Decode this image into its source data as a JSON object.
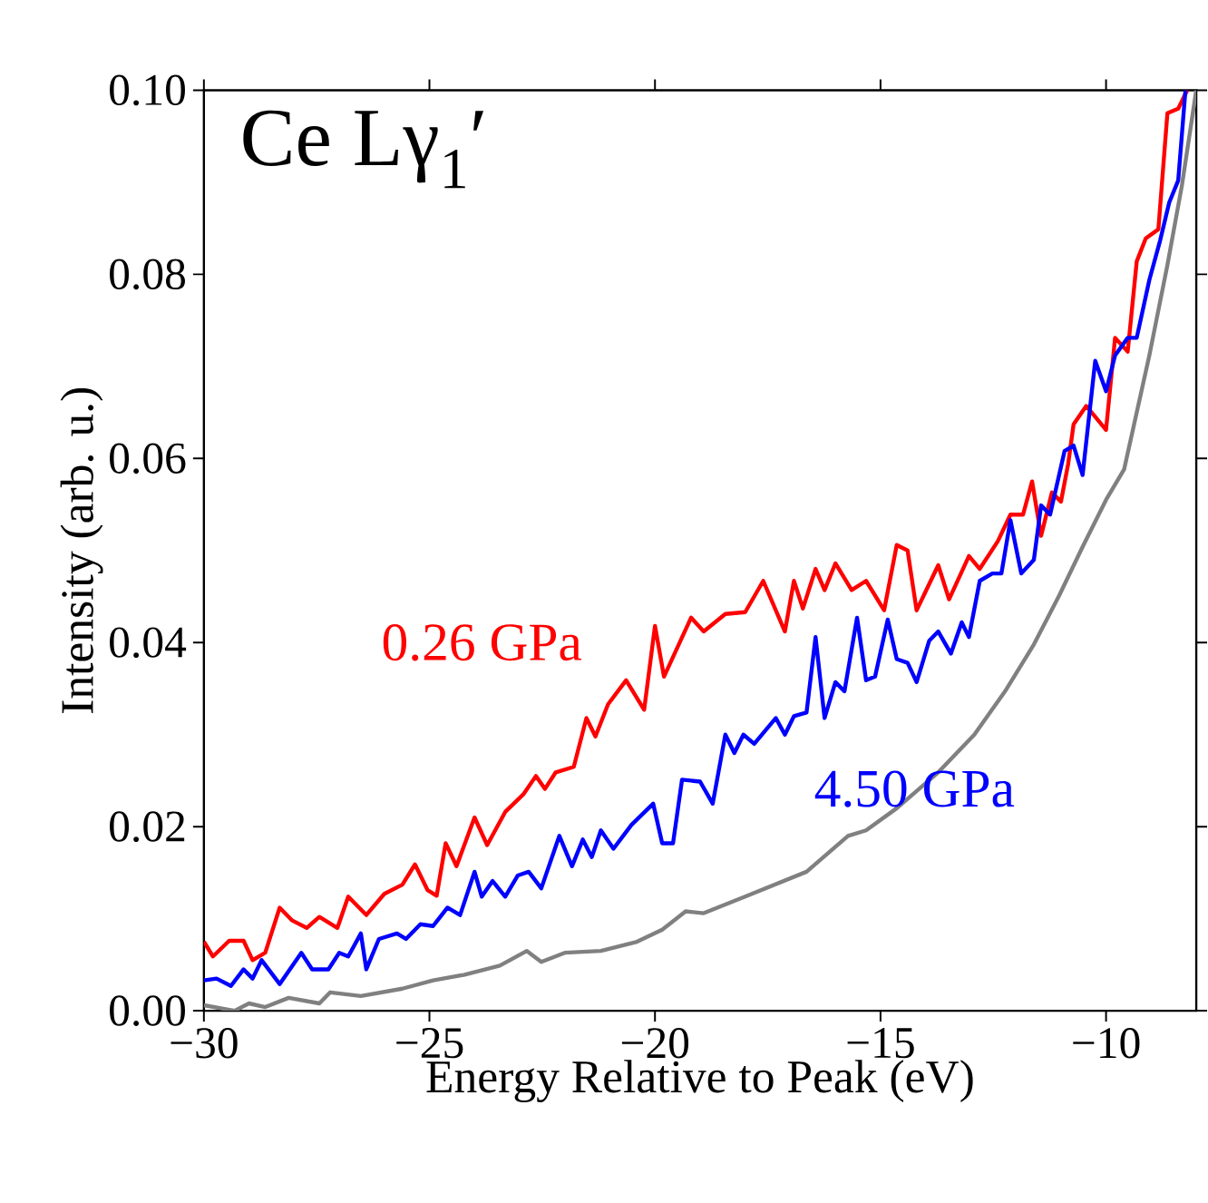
{
  "chart_data": {
    "type": "line",
    "title": "Ce Lγ$_{1}$′",
    "xlabel": "Energy Relative to Peak (eV)",
    "ylabel": "Intensity (arb. u.)",
    "xlim": [
      -30,
      -8
    ],
    "ylim": [
      0,
      0.1
    ],
    "xticks": [
      {
        "value": -30,
        "label": "−30"
      },
      {
        "value": -25,
        "label": "−25"
      },
      {
        "value": -20,
        "label": "−20"
      },
      {
        "value": -15,
        "label": "−15"
      },
      {
        "value": -10,
        "label": "−10"
      }
    ],
    "yticks": [
      {
        "value": 0,
        "label": "0.00"
      },
      {
        "value": 0.02,
        "label": "0.02"
      },
      {
        "value": 0.04,
        "label": "0.04"
      },
      {
        "value": 0.06,
        "label": "0.06"
      },
      {
        "value": 0.08,
        "label": "0.08"
      },
      {
        "value": 0.1,
        "label": "0.10"
      }
    ],
    "series": [
      {
        "name": "0.26 GPa",
        "color": "#ff0000",
        "x": [
          -30,
          -29.8,
          -29.44,
          -29.12,
          -28.92,
          -28.64,
          -28.32,
          -28.04,
          -27.72,
          -27.44,
          -27.04,
          -26.8,
          -26.4,
          -26.0,
          -25.6,
          -25.32,
          -25.04,
          -24.84,
          -24.64,
          -24.4,
          -24.0,
          -23.72,
          -23.32,
          -22.92,
          -22.64,
          -22.44,
          -22.2,
          -21.8,
          -21.52,
          -21.32,
          -21.04,
          -20.64,
          -20.24,
          -20.0,
          -19.8,
          -19.2,
          -18.92,
          -18.44,
          -18.0,
          -17.6,
          -17.12,
          -16.92,
          -16.72,
          -16.44,
          -16.24,
          -16.0,
          -15.64,
          -15.32,
          -14.92,
          -14.64,
          -14.4,
          -14.2,
          -13.72,
          -13.48,
          -13.04,
          -12.8,
          -12.4,
          -12.12,
          -11.84,
          -11.64,
          -11.44,
          -11.2,
          -11.0,
          -10.84,
          -10.72,
          -10.44,
          -10.0,
          -9.8,
          -9.52,
          -9.32,
          -9.12,
          -8.84,
          -8.64,
          -8.4,
          -8.2
        ],
        "values": [
          0.0075,
          0.0059,
          0.0076,
          0.0076,
          0.0055,
          0.0063,
          0.0112,
          0.0098,
          0.009,
          0.0102,
          0.009,
          0.0124,
          0.0104,
          0.0127,
          0.0137,
          0.0159,
          0.0131,
          0.0125,
          0.0182,
          0.0157,
          0.021,
          0.018,
          0.0216,
          0.0235,
          0.0255,
          0.0241,
          0.0259,
          0.0265,
          0.0318,
          0.0298,
          0.0333,
          0.0359,
          0.0327,
          0.0418,
          0.0363,
          0.0427,
          0.0412,
          0.0431,
          0.0433,
          0.0467,
          0.0412,
          0.0467,
          0.0437,
          0.048,
          0.0457,
          0.0486,
          0.0457,
          0.0467,
          0.0435,
          0.0506,
          0.05,
          0.0435,
          0.0484,
          0.0447,
          0.0494,
          0.048,
          0.051,
          0.0539,
          0.0539,
          0.0575,
          0.0516,
          0.0563,
          0.0553,
          0.0594,
          0.0637,
          0.0657,
          0.0631,
          0.0731,
          0.0716,
          0.0814,
          0.0839,
          0.0849,
          0.0975,
          0.098,
          0.1
        ]
      },
      {
        "name": "4.50 GPa",
        "color": "#0000ff",
        "x": [
          -30,
          -29.72,
          -29.4,
          -29.12,
          -28.92,
          -28.72,
          -28.32,
          -27.84,
          -27.6,
          -27.24,
          -27.0,
          -26.8,
          -26.52,
          -26.4,
          -26.12,
          -25.72,
          -25.52,
          -25.2,
          -24.92,
          -24.6,
          -24.32,
          -24.0,
          -23.84,
          -23.6,
          -23.32,
          -23.04,
          -22.8,
          -22.52,
          -22.12,
          -21.84,
          -21.6,
          -21.4,
          -21.2,
          -20.92,
          -20.52,
          -20.04,
          -19.84,
          -19.6,
          -19.4,
          -19.0,
          -18.72,
          -18.44,
          -18.24,
          -18.04,
          -17.8,
          -17.32,
          -17.12,
          -16.92,
          -16.64,
          -16.44,
          -16.24,
          -16.0,
          -15.8,
          -15.52,
          -15.32,
          -15.12,
          -14.84,
          -14.64,
          -14.4,
          -14.2,
          -13.92,
          -13.72,
          -13.44,
          -13.2,
          -13.04,
          -12.8,
          -12.52,
          -12.32,
          -12.12,
          -11.88,
          -11.6,
          -11.44,
          -11.24,
          -10.92,
          -10.72,
          -10.52,
          -10.24,
          -10.0,
          -9.8,
          -9.52,
          -9.32,
          -9.04,
          -8.8,
          -8.6,
          -8.4,
          -8.24
        ],
        "values": [
          0.0033,
          0.0035,
          0.0027,
          0.0045,
          0.0035,
          0.0055,
          0.0029,
          0.0063,
          0.0045,
          0.0045,
          0.0063,
          0.0059,
          0.0084,
          0.0045,
          0.0078,
          0.0084,
          0.0078,
          0.0094,
          0.0092,
          0.0112,
          0.0104,
          0.0151,
          0.0124,
          0.0141,
          0.0124,
          0.0147,
          0.0151,
          0.0133,
          0.019,
          0.0157,
          0.0186,
          0.0167,
          0.0196,
          0.0176,
          0.0202,
          0.0225,
          0.0182,
          0.0182,
          0.0251,
          0.0249,
          0.0225,
          0.03,
          0.028,
          0.03,
          0.029,
          0.0318,
          0.03,
          0.032,
          0.0324,
          0.0406,
          0.0318,
          0.0357,
          0.0347,
          0.0427,
          0.0359,
          0.0363,
          0.0425,
          0.0382,
          0.0378,
          0.0357,
          0.0402,
          0.0412,
          0.0388,
          0.0422,
          0.0406,
          0.0467,
          0.0475,
          0.0475,
          0.0533,
          0.0475,
          0.049,
          0.0549,
          0.0539,
          0.0608,
          0.0614,
          0.0582,
          0.0706,
          0.0673,
          0.0712,
          0.0731,
          0.0731,
          0.0794,
          0.0837,
          0.0878,
          0.0902,
          0.1
        ]
      },
      {
        "color": "#808080",
        "x": [
          -30,
          -29.32,
          -29.0,
          -28.64,
          -28.12,
          -27.44,
          -27.2,
          -26.52,
          -25.6,
          -24.92,
          -24.24,
          -23.44,
          -22.84,
          -22.52,
          -22.0,
          -21.2,
          -20.4,
          -19.84,
          -19.32,
          -18.92,
          -18.0,
          -16.64,
          -15.72,
          -15.32,
          -14.64,
          -13.72,
          -12.92,
          -12.24,
          -11.6,
          -11.04,
          -10.52,
          -10.0,
          -9.6,
          -9.04,
          -8.64,
          -8.32,
          -8.0
        ],
        "values": [
          0.0006,
          0.0,
          0.0008,
          0.0004,
          0.0014,
          0.0008,
          0.002,
          0.0016,
          0.0024,
          0.0033,
          0.0039,
          0.0049,
          0.0065,
          0.0053,
          0.0063,
          0.0065,
          0.0075,
          0.0088,
          0.0108,
          0.0106,
          0.0124,
          0.0151,
          0.019,
          0.0196,
          0.022,
          0.0259,
          0.03,
          0.0347,
          0.0398,
          0.0451,
          0.0504,
          0.0555,
          0.0588,
          0.0712,
          0.081,
          0.0896,
          0.1
        ]
      }
    ]
  }
}
